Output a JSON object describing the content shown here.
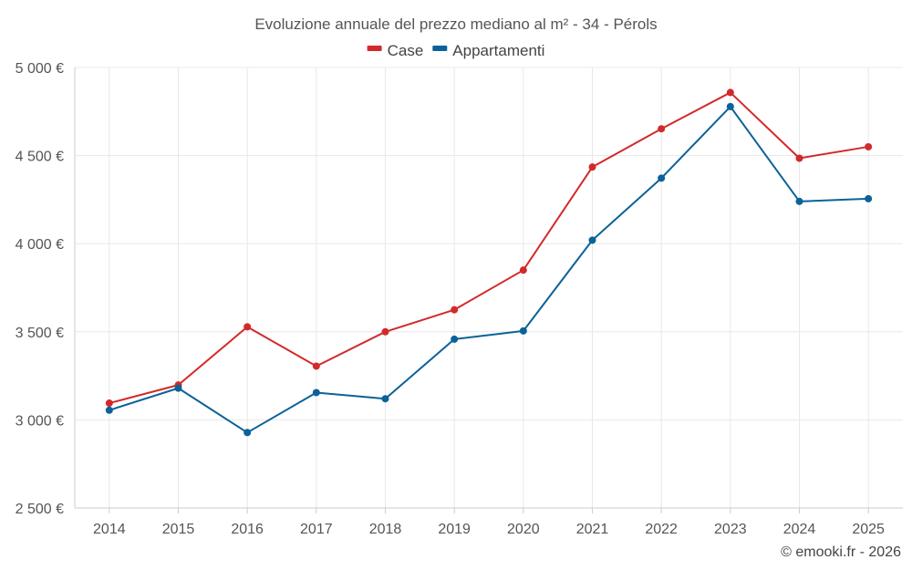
{
  "chart_data": {
    "type": "line",
    "title": "Evoluzione annuale del prezzo mediano al m² - 34 - Pérols",
    "categories": [
      "2014",
      "2015",
      "2016",
      "2017",
      "2018",
      "2019",
      "2020",
      "2021",
      "2022",
      "2023",
      "2024",
      "2025"
    ],
    "series": [
      {
        "name": "Case",
        "color": "#d22a2a",
        "values": [
          3095,
          3198,
          3528,
          3305,
          3500,
          3625,
          3850,
          4435,
          4652,
          4858,
          4485,
          4550
        ]
      },
      {
        "name": "Appartamenti",
        "color": "#0b6298",
        "values": [
          3055,
          3180,
          2928,
          3155,
          3120,
          3458,
          3505,
          4020,
          4372,
          4778,
          4240,
          4255
        ]
      }
    ],
    "ylim": [
      2500,
      5000
    ],
    "yticks": [
      {
        "value": 2500,
        "label": "2 500 €"
      },
      {
        "value": 3000,
        "label": "3 000 €"
      },
      {
        "value": 3500,
        "label": "3 500 €"
      },
      {
        "value": 4000,
        "label": "4 000 €"
      },
      {
        "value": 4500,
        "label": "4 500 €"
      },
      {
        "value": 5000,
        "label": "5 000 €"
      }
    ],
    "xlabel": "",
    "ylabel": "",
    "legend_position": "top-center",
    "grid": true
  },
  "credit": "© emooki.fr - 2026"
}
